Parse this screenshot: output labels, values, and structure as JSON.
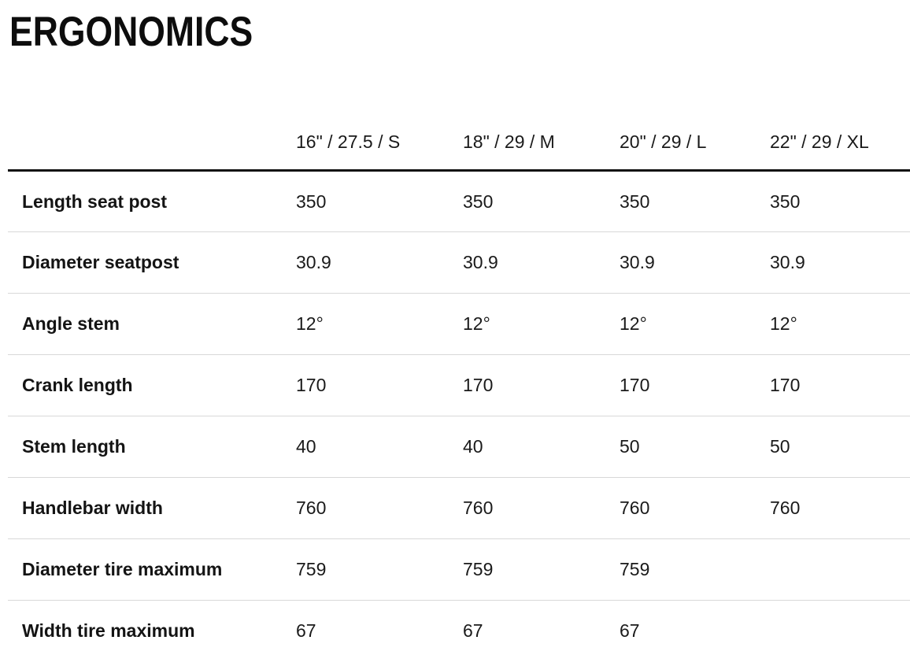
{
  "title": "ERGONOMICS",
  "colors": {
    "text": "#1a1a1a",
    "title": "#0d0d0d",
    "header_rule": "#111111",
    "row_divider": "#d8d8d8",
    "background": "#ffffff"
  },
  "table": {
    "columns": [
      "16\" / 27.5 / S",
      "18\" / 29 / M",
      "20\" / 29 / L",
      "22\" / 29 / XL"
    ],
    "rows": [
      {
        "label": "Length seat post",
        "values": [
          "350",
          "350",
          "350",
          "350"
        ]
      },
      {
        "label": "Diameter seatpost",
        "values": [
          "30.9",
          "30.9",
          "30.9",
          "30.9"
        ]
      },
      {
        "label": "Angle stem",
        "values": [
          "12°",
          "12°",
          "12°",
          "12°"
        ]
      },
      {
        "label": "Crank length",
        "values": [
          "170",
          "170",
          "170",
          "170"
        ]
      },
      {
        "label": "Stem length",
        "values": [
          "40",
          "40",
          "50",
          "50"
        ]
      },
      {
        "label": "Handlebar width",
        "values": [
          "760",
          "760",
          "760",
          "760"
        ]
      },
      {
        "label": "Diameter tire maximum",
        "values": [
          "759",
          "759",
          "759",
          ""
        ]
      },
      {
        "label": "Width tire maximum",
        "values": [
          "67",
          "67",
          "67",
          ""
        ]
      }
    ]
  }
}
